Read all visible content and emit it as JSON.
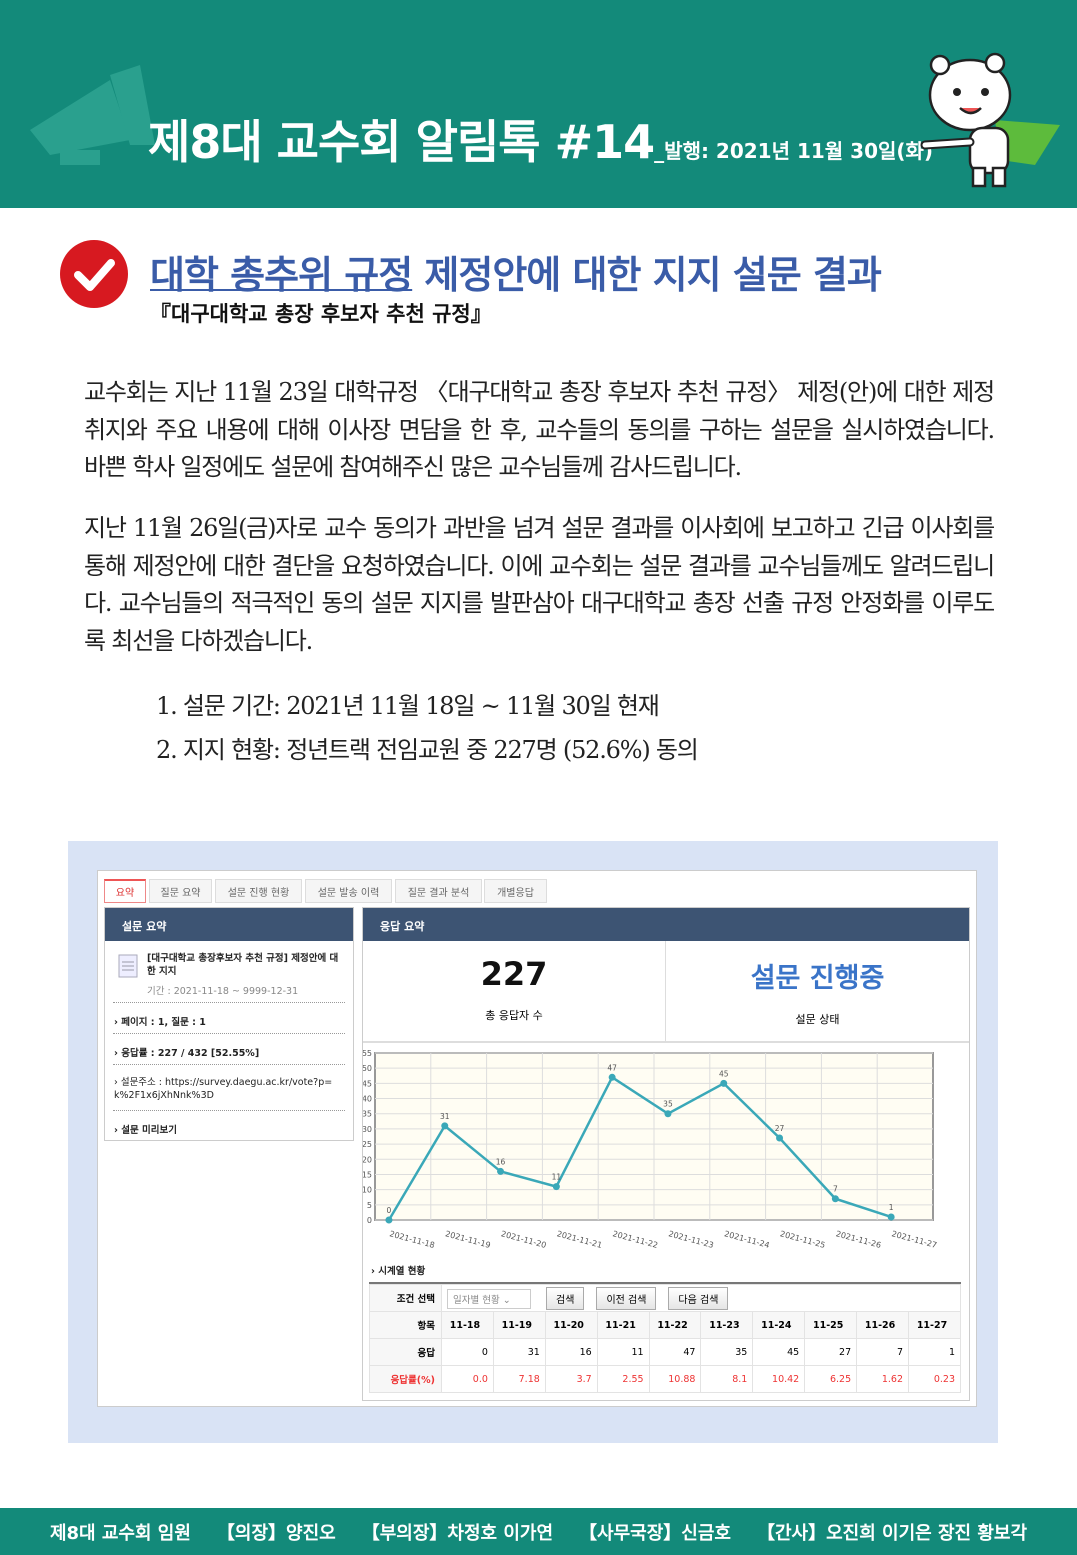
{
  "header": {
    "title": "제8대 교수회 알림톡 #14",
    "issue_date": "_발행: 2021년 11월 30일(화)",
    "bg_color": "#138a7a"
  },
  "article": {
    "heading_underlined": "대학 총추위 규정",
    "heading_rest": " 제정안에 대한 지지 설문 결과",
    "subheading": "『대구대학교 총장 후보자 추천 규정』",
    "paragraph1": "교수회는 지난 11월 23일 대학규정 〈대구대학교 총장 후보자 추천 규정〉 제정(안)에 대한 제정 취지와 주요 내용에 대해 이사장 면담을 한 후, 교수들의 동의를 구하는 설문을 실시하였습니다. 바쁜 학사 일정에도 설문에 참여해주신 많은 교수님들께 감사드립니다.",
    "paragraph2": "지난 11월 26일(금)자로 교수 동의가 과반을 넘겨 설문 결과를 이사회에 보고하고 긴급 이사회를 통해 제정안에 대한 결단을 요청하였습니다. 이에 교수회는 설문 결과를 교수님들께도 알려드립니다. 교수님들의 적극적인 동의 설문 지지를 발판삼아 대구대학교 총장 선출 규정 안정화를 이루도록 최선을 다하겠습니다.",
    "list": [
      "1. 설문 기간: 2021년 11월 18일 ~ 11월 30일 현재",
      "2. 지지 현황: 정년트랙 전임교원 중 227명 (52.6%) 동의"
    ]
  },
  "survey": {
    "tabs": [
      "요약",
      "질문 요약",
      "설문 진행 현황",
      "설문 발송 이력",
      "질문 결과 분석",
      "개별응답"
    ],
    "summary_title": "설문 요약",
    "survey_name": "[대구대학교 총장후보자 추천 규정] 제정안에 대한 지지",
    "period": "기간 : 2021-11-18 ~ 9999-12-31",
    "pages": "페이지 : 1, 질문 : 1",
    "rate": "응답률 : 227 / 432 [52.55%]",
    "url_line1": "설문주소 : https://survey.daegu.ac.kr/vote?p=",
    "url_line2": "k%2F1x6jXhNnk%3D",
    "preview": "설문 미리보기",
    "response_title": "응답 요약",
    "total": "227",
    "total_label": "총 응답자 수",
    "status": "설문 진행중",
    "status_label": "설문 상태",
    "timeseries_label": "시계열 현황",
    "condition_label": "조건 선택",
    "select_value": "일자별 현황",
    "buttons": [
      "검색",
      "이전 검색",
      "다음 검색"
    ],
    "table": {
      "row_labels": [
        "항목",
        "응답",
        "응답률(%)"
      ],
      "dates": [
        "11-18",
        "11-19",
        "11-20",
        "11-21",
        "11-22",
        "11-23",
        "11-24",
        "11-25",
        "11-26",
        "11-27"
      ],
      "responses": [
        "0",
        "31",
        "16",
        "11",
        "47",
        "35",
        "45",
        "27",
        "7",
        "1"
      ],
      "rates": [
        "0.0",
        "7.18",
        "3.7",
        "2.55",
        "10.88",
        "8.1",
        "10.42",
        "6.25",
        "1.62",
        "0.23"
      ]
    }
  },
  "chart_data": {
    "type": "line",
    "x": [
      "2021-11-18",
      "2021-11-19",
      "2021-11-20",
      "2021-11-21",
      "2021-11-22",
      "2021-11-23",
      "2021-11-24",
      "2021-11-25",
      "2021-11-26",
      "2021-11-27"
    ],
    "values": [
      0,
      31,
      16,
      11,
      47,
      35,
      45,
      27,
      7,
      1
    ],
    "ylim": [
      0,
      55
    ],
    "yticks": [
      0,
      5,
      10,
      15,
      20,
      25,
      30,
      35,
      40,
      45,
      50,
      55
    ],
    "grid": true,
    "line_color": "#3aa8b8"
  },
  "footer": {
    "items": [
      "제8대 교수회 임원",
      "【의장】양진오",
      "【부의장】차정호 이가연",
      "【사무국장】신금호",
      "【간사】오진희 이기은 장진 황보각"
    ]
  }
}
